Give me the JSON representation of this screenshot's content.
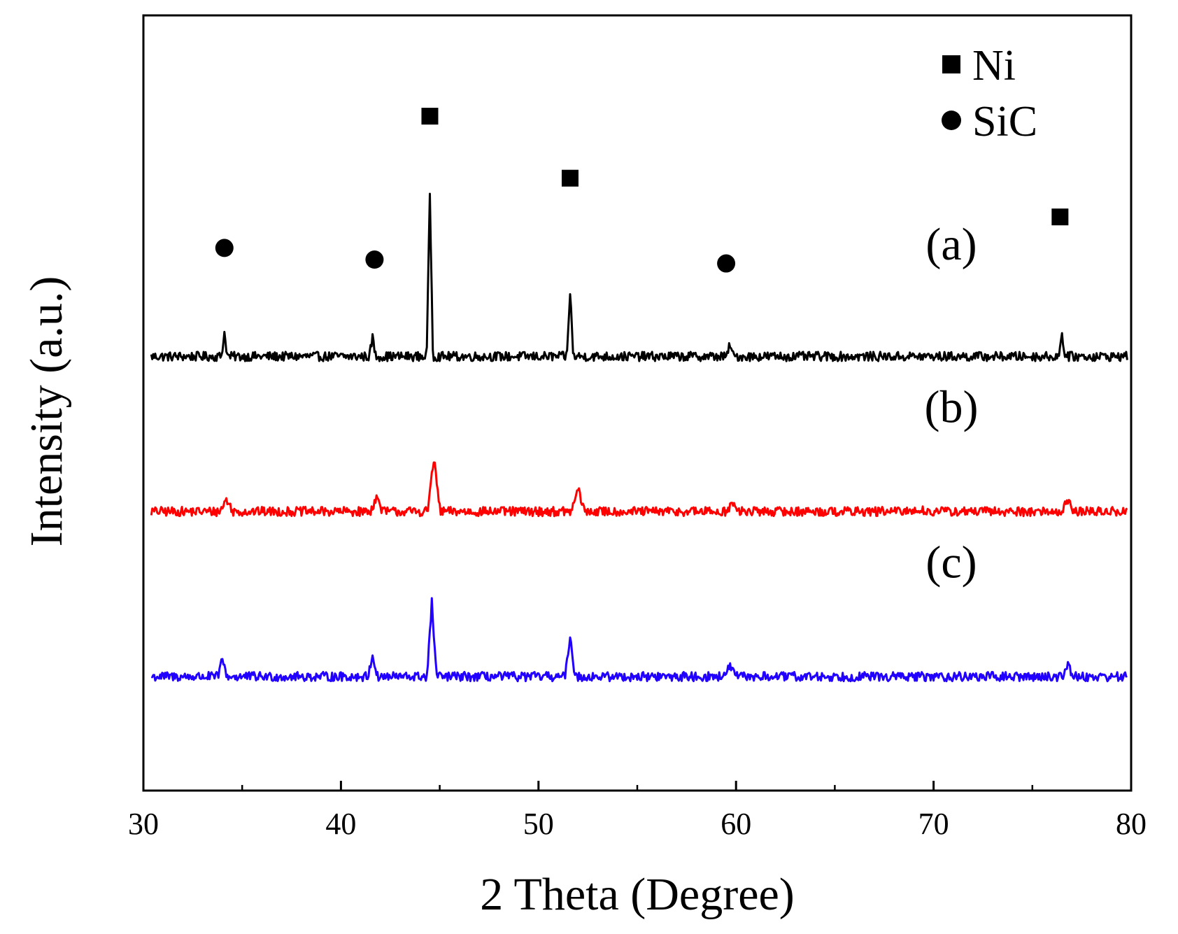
{
  "chart_data": {
    "type": "line",
    "title": "",
    "xlabel": "2 Theta (Degree)",
    "ylabel": "Intensity (a.u.)",
    "xlim": [
      30,
      80
    ],
    "x_major_ticks": [
      30,
      40,
      50,
      60,
      70,
      80
    ],
    "x_tick_labels": [
      "30",
      "40",
      "50",
      "60",
      "70",
      "80"
    ],
    "x_minor_step": 5,
    "ylim": [
      0,
      1
    ],
    "y_ticks_shown": false,
    "grid": false,
    "legend": {
      "position": "top-right",
      "entries": [
        {
          "marker": "square",
          "label": "Ni"
        },
        {
          "marker": "circle",
          "label": "SiC"
        }
      ]
    },
    "series": [
      {
        "name": "(a)",
        "label": "(a)",
        "color": "#000000",
        "baseline": 0.56,
        "noise": 0.006,
        "peak_width": 0.16,
        "peaks": [
          {
            "x": 34.1,
            "height": 0.03
          },
          {
            "x": 41.6,
            "height": 0.025
          },
          {
            "x": 44.5,
            "height": 0.21
          },
          {
            "x": 51.6,
            "height": 0.085
          },
          {
            "x": 59.7,
            "height": 0.017
          },
          {
            "x": 76.5,
            "height": 0.03
          }
        ],
        "markers": [
          {
            "x": 34.1,
            "y": 0.7,
            "shape": "circle"
          },
          {
            "x": 41.7,
            "y": 0.685,
            "shape": "circle"
          },
          {
            "x": 44.5,
            "y": 0.87,
            "shape": "square"
          },
          {
            "x": 51.6,
            "y": 0.79,
            "shape": "square"
          },
          {
            "x": 59.5,
            "y": 0.68,
            "shape": "circle"
          },
          {
            "x": 76.4,
            "y": 0.74,
            "shape": "square"
          }
        ],
        "label_pos": [
          70.9,
          0.685
        ]
      },
      {
        "name": "(b)",
        "label": "(b)",
        "color": "#ff0000",
        "baseline": 0.36,
        "noise": 0.006,
        "peak_width": 0.32,
        "peaks": [
          {
            "x": 34.2,
            "height": 0.016
          },
          {
            "x": 41.8,
            "height": 0.018
          },
          {
            "x": 44.7,
            "height": 0.068
          },
          {
            "x": 52.0,
            "height": 0.03
          },
          {
            "x": 59.8,
            "height": 0.01
          },
          {
            "x": 69.2,
            "height": 0.004
          },
          {
            "x": 76.8,
            "height": 0.014
          }
        ],
        "markers": [],
        "label_pos": [
          70.9,
          0.475
        ]
      },
      {
        "name": "(c)",
        "label": "(c)",
        "color": "#2200ff",
        "baseline": 0.147,
        "noise": 0.006,
        "peak_width": 0.24,
        "peaks": [
          {
            "x": 34.0,
            "height": 0.022
          },
          {
            "x": 41.6,
            "height": 0.028
          },
          {
            "x": 44.6,
            "height": 0.096
          },
          {
            "x": 51.6,
            "height": 0.055
          },
          {
            "x": 59.7,
            "height": 0.017
          },
          {
            "x": 76.8,
            "height": 0.02
          }
        ],
        "markers": [],
        "label_pos": [
          70.9,
          0.275
        ]
      }
    ]
  }
}
